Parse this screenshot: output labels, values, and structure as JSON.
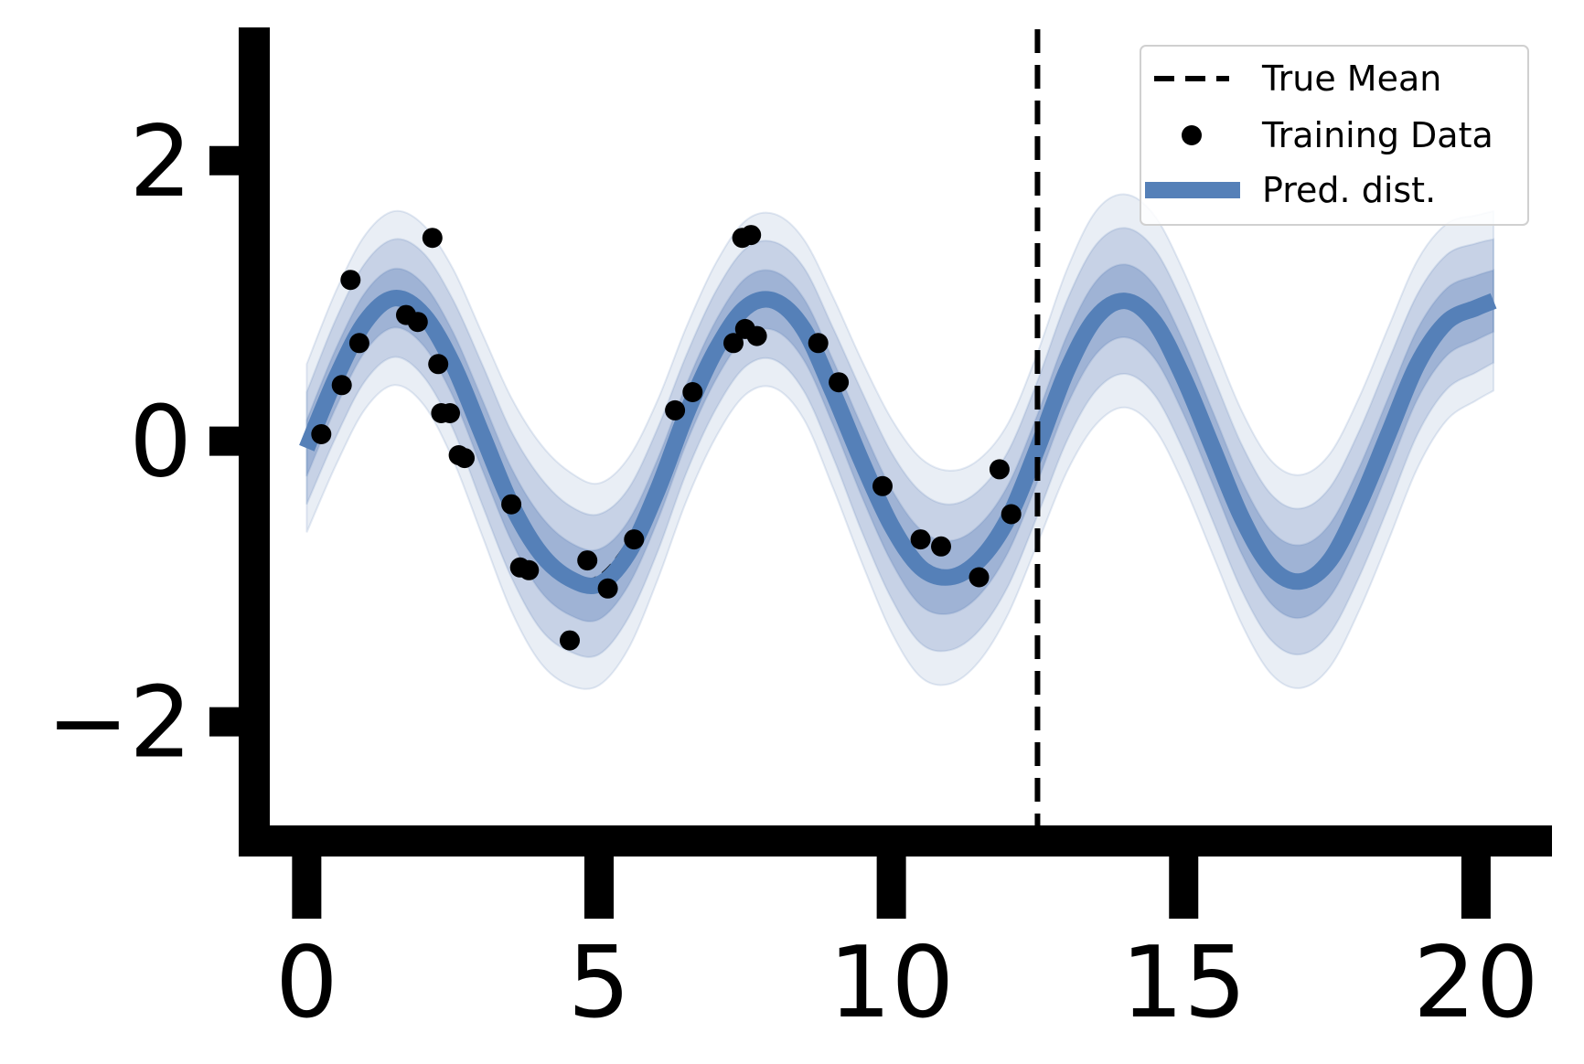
{
  "chart_data": {
    "type": "line",
    "xlim": [
      -0.6,
      21.3
    ],
    "ylim": [
      -2.85,
      2.95
    ],
    "x_ticks": [
      0,
      5,
      10,
      15,
      20
    ],
    "x_tick_labels": [
      "0",
      "5",
      "10",
      "15",
      "20"
    ],
    "y_ticks": [
      -2,
      0,
      2
    ],
    "y_tick_labels": [
      "−2",
      "0",
      "2"
    ],
    "grid": false,
    "legend_position": "top-right",
    "legend": [
      {
        "label": "True Mean",
        "style": "dashed-line"
      },
      {
        "label": "Training Data",
        "style": "marker"
      },
      {
        "label": "Pred. dist.",
        "style": "thick-line"
      }
    ],
    "vertical_line": {
      "x": 12.5,
      "style": "dashed"
    },
    "pred_mean": {
      "name": "Pred. dist.",
      "x": [
        0.0,
        0.5,
        1.0,
        1.5,
        2.0,
        2.5,
        3.0,
        3.5,
        4.0,
        4.5,
        5.0,
        5.5,
        6.0,
        6.5,
        7.0,
        7.5,
        8.0,
        8.5,
        9.0,
        9.5,
        10.0,
        10.5,
        11.0,
        11.5,
        12.0,
        12.5,
        13.0,
        13.5,
        14.0,
        14.5,
        15.0,
        15.5,
        16.0,
        16.5,
        17.0,
        17.5,
        18.0,
        18.5,
        19.0,
        19.5,
        20.0,
        20.3
      ],
      "y": [
        -0.05,
        0.45,
        0.85,
        1.02,
        0.9,
        0.55,
        0.05,
        -0.45,
        -0.8,
        -0.98,
        -1.02,
        -0.8,
        -0.35,
        0.2,
        0.65,
        0.95,
        1.0,
        0.8,
        0.35,
        -0.15,
        -0.6,
        -0.9,
        -0.97,
        -0.85,
        -0.55,
        -0.05,
        0.5,
        0.88,
        1.0,
        0.85,
        0.45,
        -0.05,
        -0.55,
        -0.9,
        -1.0,
        -0.85,
        -0.45,
        0.05,
        0.55,
        0.85,
        0.95,
        1.0
      ]
    },
    "bands": [
      {
        "level": "outer",
        "half_width": [
          0.6,
          0.62,
          0.62,
          0.62,
          0.64,
          0.68,
          0.72,
          0.76,
          0.78,
          0.76,
          0.72,
          0.68,
          0.64,
          0.62,
          0.62,
          0.62,
          0.62,
          0.64,
          0.68,
          0.72,
          0.76,
          0.78,
          0.76,
          0.72,
          0.68,
          0.68,
          0.72,
          0.76,
          0.76,
          0.76,
          0.76,
          0.76,
          0.76,
          0.76,
          0.76,
          0.76,
          0.76,
          0.76,
          0.74,
          0.7,
          0.66,
          0.64
        ]
      },
      {
        "level": "middle",
        "half_width": [
          0.4,
          0.42,
          0.42,
          0.42,
          0.44,
          0.46,
          0.5,
          0.52,
          0.54,
          0.52,
          0.5,
          0.46,
          0.44,
          0.42,
          0.42,
          0.42,
          0.42,
          0.44,
          0.46,
          0.5,
          0.52,
          0.54,
          0.52,
          0.5,
          0.48,
          0.48,
          0.5,
          0.52,
          0.52,
          0.52,
          0.52,
          0.52,
          0.52,
          0.52,
          0.52,
          0.52,
          0.52,
          0.52,
          0.5,
          0.48,
          0.46,
          0.44
        ]
      },
      {
        "level": "inner",
        "half_width": [
          0.2,
          0.21,
          0.21,
          0.21,
          0.22,
          0.23,
          0.25,
          0.26,
          0.27,
          0.26,
          0.25,
          0.23,
          0.22,
          0.21,
          0.21,
          0.21,
          0.21,
          0.22,
          0.23,
          0.25,
          0.26,
          0.27,
          0.26,
          0.25,
          0.24,
          0.24,
          0.25,
          0.26,
          0.26,
          0.26,
          0.26,
          0.26,
          0.26,
          0.26,
          0.26,
          0.26,
          0.26,
          0.26,
          0.25,
          0.24,
          0.23,
          0.22
        ]
      }
    ],
    "true_mean": {
      "name": "True Mean",
      "x": [
        0.0,
        0.5,
        1.0,
        1.5,
        2.0,
        2.5,
        3.0,
        3.5,
        4.0,
        4.5,
        5.0,
        5.5,
        6.0,
        6.5,
        7.0,
        7.5,
        8.0,
        8.5,
        9.0,
        9.5,
        10.0,
        10.5,
        11.0,
        11.5,
        12.0,
        12.5
      ],
      "y": [
        0.0,
        0.48,
        0.84,
        1.0,
        0.91,
        0.6,
        0.14,
        -0.35,
        -0.76,
        -0.98,
        -0.96,
        -0.71,
        -0.28,
        0.22,
        0.66,
        0.94,
        0.99,
        0.8,
        0.41,
        -0.08,
        -0.54,
        -0.88,
        -1.0,
        -0.88,
        -0.54,
        -0.07
      ]
    },
    "training_points": {
      "name": "Training Data",
      "x": [
        0.25,
        0.6,
        0.75,
        0.9,
        1.7,
        1.9,
        2.15,
        2.25,
        2.3,
        2.45,
        2.6,
        2.7,
        3.5,
        3.65,
        3.8,
        4.5,
        4.8,
        5.15,
        5.6,
        6.3,
        6.6,
        7.3,
        7.45,
        7.5,
        7.6,
        7.7,
        8.75,
        9.1,
        9.85,
        10.5,
        10.85,
        11.5,
        11.85,
        12.05
      ],
      "y": [
        0.05,
        0.4,
        1.15,
        0.7,
        0.9,
        0.85,
        1.45,
        0.55,
        0.2,
        0.2,
        -0.1,
        -0.12,
        -0.45,
        -0.9,
        -0.92,
        -1.42,
        -0.85,
        -1.05,
        -0.7,
        0.22,
        0.35,
        0.7,
        1.45,
        0.8,
        1.47,
        0.75,
        0.7,
        0.42,
        -0.32,
        -0.7,
        -0.75,
        -0.97,
        -0.2,
        -0.52
      ]
    },
    "colors": {
      "pred_line": "#5580b8",
      "band_fill": "#4c72b0",
      "points": "#000000",
      "axes": "#000000"
    }
  }
}
